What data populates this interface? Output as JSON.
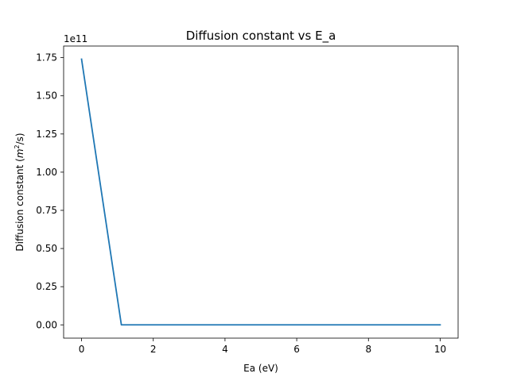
{
  "chart_data": {
    "type": "line",
    "title": "Diffusion constant vs E_a",
    "xlabel": "Ea (eV)",
    "ylabel_main": "Diffusion constant (",
    "ylabel_unit_base": "m",
    "ylabel_unit_exp": "2",
    "ylabel_tail": "/s)",
    "y_offset_label": "1e11",
    "xlim": [
      -0.5,
      10.5
    ],
    "ylim": [
      -0.087,
      1.826
    ],
    "x_ticks": [
      0,
      2,
      4,
      6,
      8,
      10
    ],
    "x_tick_labels": [
      "0",
      "2",
      "4",
      "6",
      "8",
      "10"
    ],
    "y_ticks": [
      0.0,
      0.25,
      0.5,
      0.75,
      1.0,
      1.25,
      1.5,
      1.75
    ],
    "y_tick_labels": [
      "0.00",
      "0.25",
      "0.50",
      "0.75",
      "1.00",
      "1.25",
      "1.50",
      "1.75"
    ],
    "grid": false,
    "series": [
      {
        "color": "#1f77b4",
        "x": [
          0,
          1.11,
          2,
          3,
          4,
          5,
          6,
          7,
          8,
          9,
          10
        ],
        "y": [
          1.74,
          0.0,
          0.0,
          0.0,
          0.0,
          0.0,
          0.0,
          0.0,
          0.0,
          0.0,
          0.0
        ]
      }
    ]
  }
}
